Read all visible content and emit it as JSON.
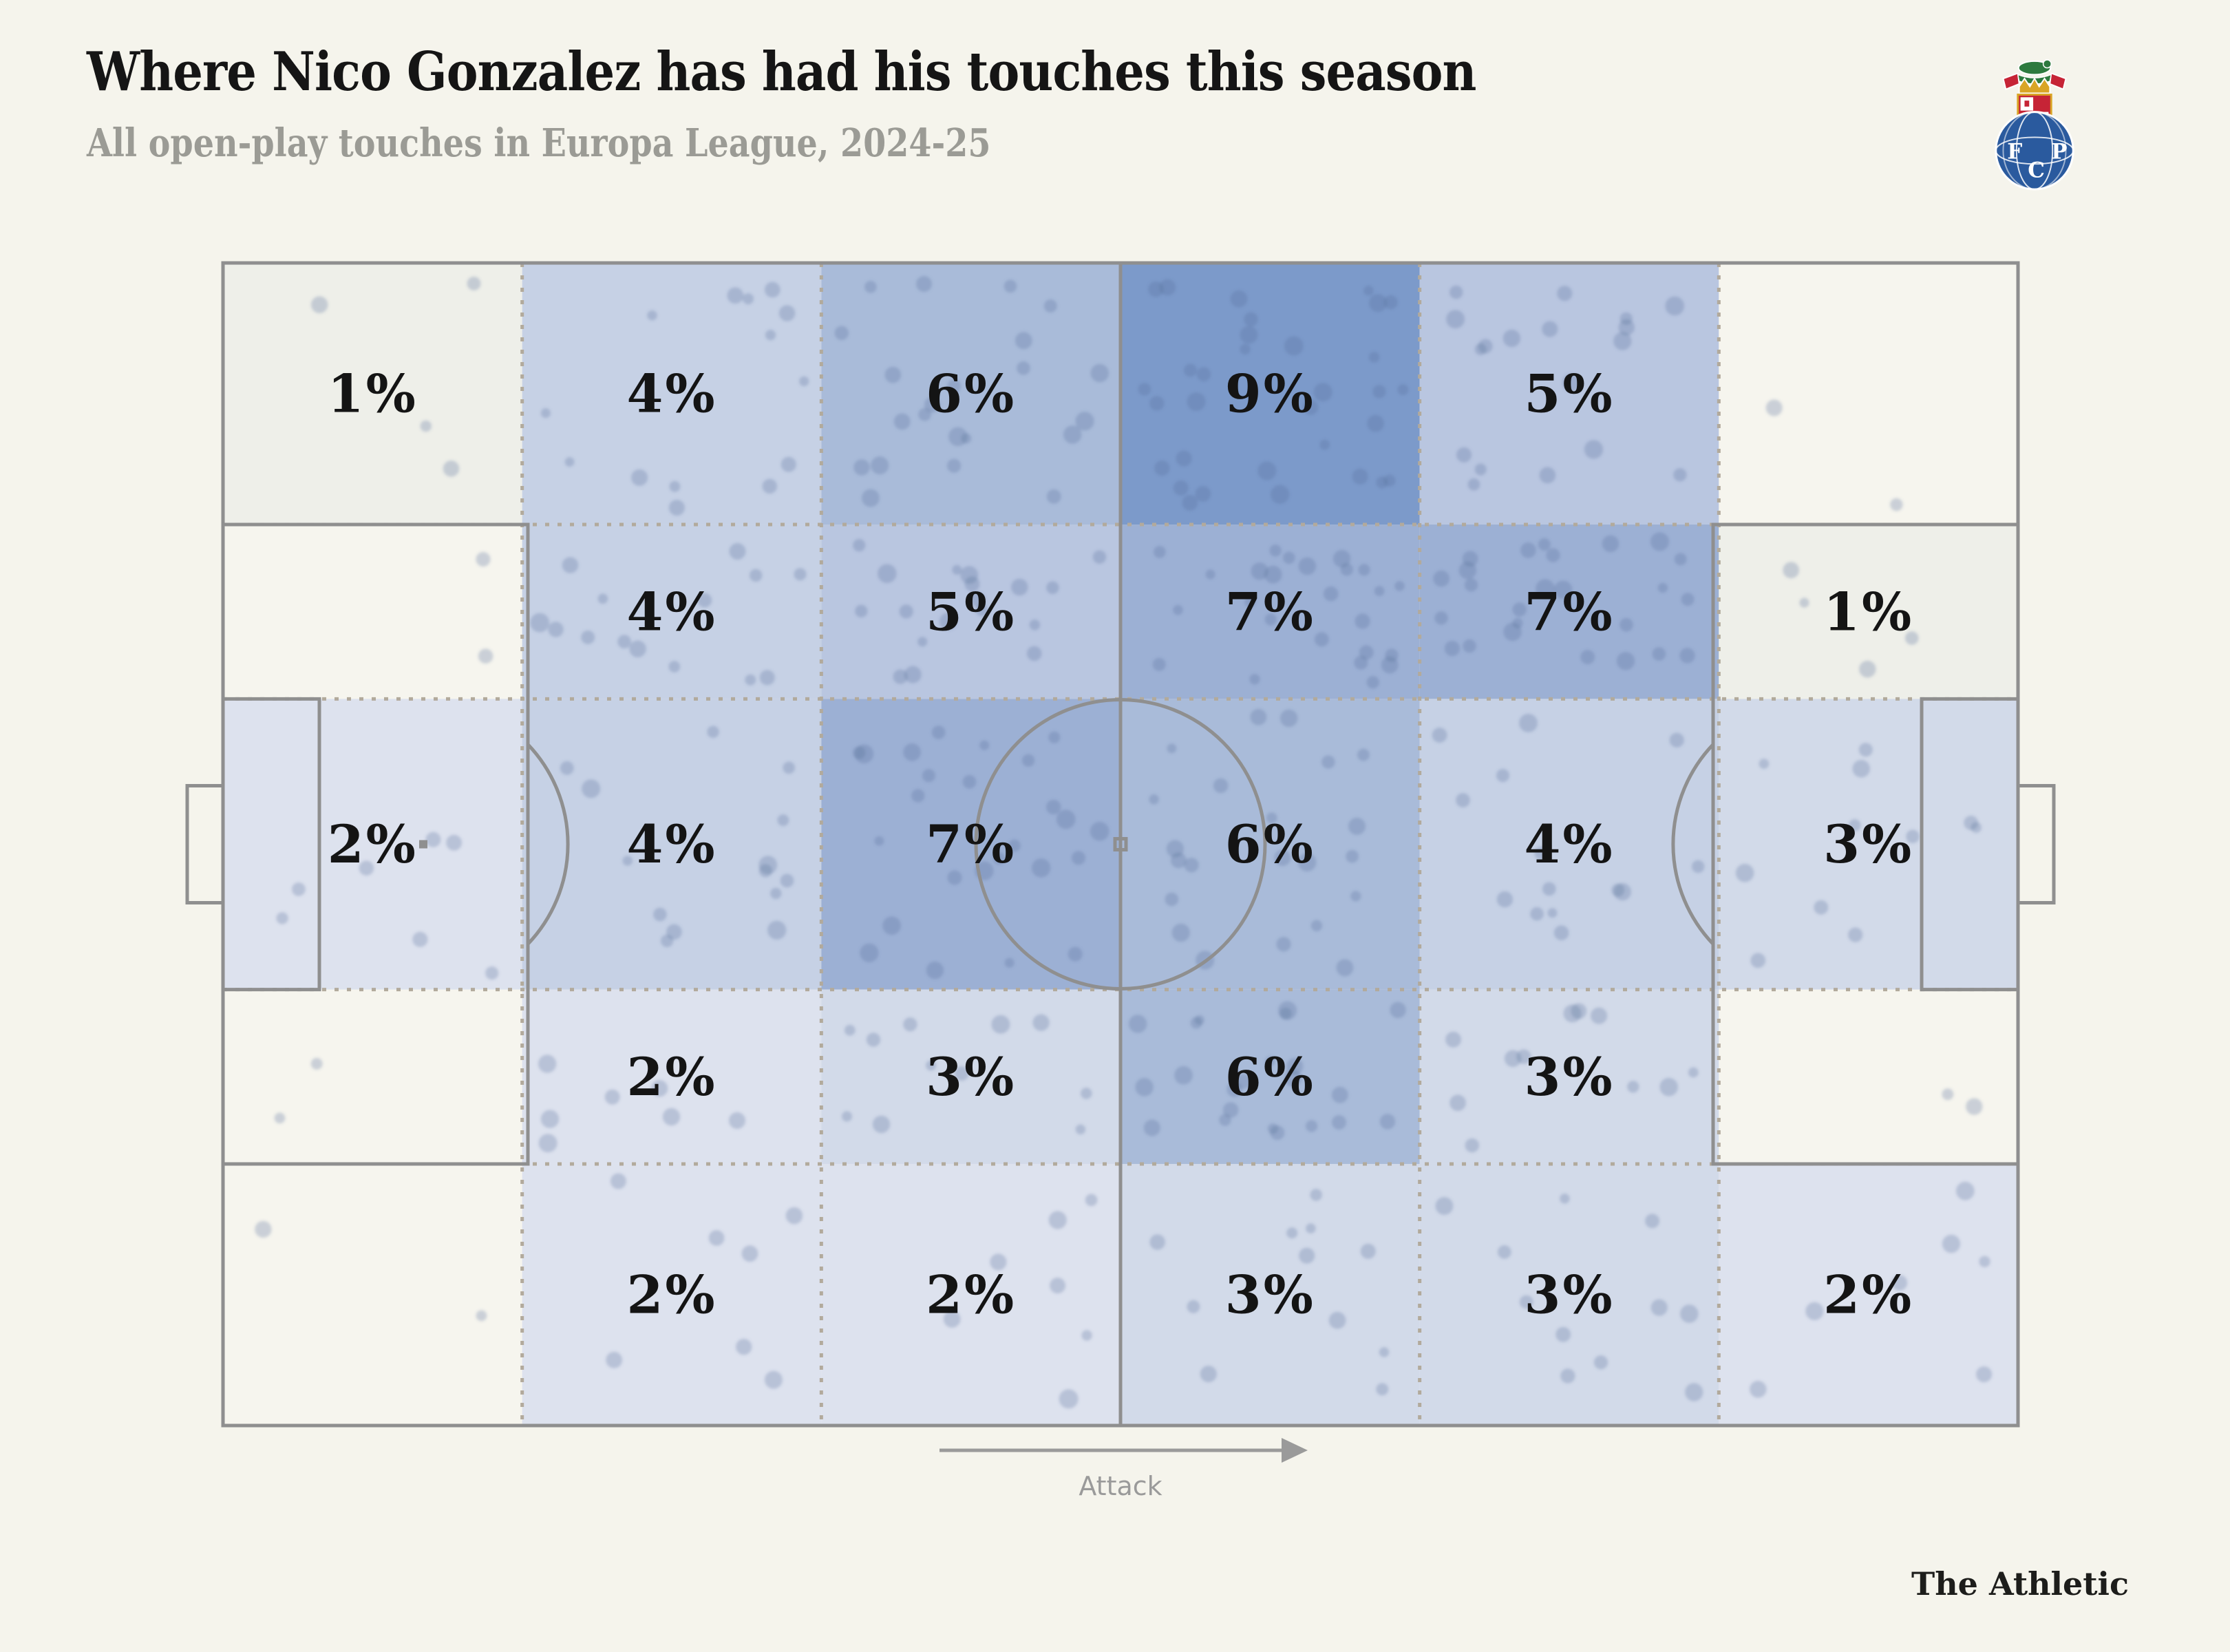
{
  "header": {
    "title": "Where Nico Gonzalez has had his touches this season",
    "subtitle": "All open-play touches in Europa League, 2024-25"
  },
  "crest": {
    "club": "FC Porto",
    "letters": [
      "F",
      "C",
      "P"
    ]
  },
  "pitch": {
    "attack_label": "Attack"
  },
  "footer": {
    "brand": "The Athletic"
  },
  "colors": {
    "background": "#f5f4ec",
    "pitch_line": "#8f8f8f",
    "zone_dash": "#b2aa9c",
    "label": "#141414",
    "subtitle": "#9b9b95",
    "attack": "#9a9a9a"
  },
  "chart_data": {
    "type": "heatmap",
    "title": "Where Nico Gonzalez has had his touches this season",
    "subtitle": "All open-play touches in Europa League, 2024-25",
    "unit": "percent of open-play touches",
    "orientation": "attack left-to-right",
    "grid": {
      "cols": 6,
      "rows": 5,
      "row_fractions": [
        0.225,
        0.15,
        0.25,
        0.15,
        0.225
      ],
      "note": "6 equal vertical bands x 5 horizontal channels; null = <1% (unlabelled)"
    },
    "zone_percentages": [
      [
        1,
        4,
        6,
        9,
        5,
        null
      ],
      [
        null,
        4,
        5,
        7,
        7,
        1
      ],
      [
        2,
        4,
        7,
        6,
        4,
        3
      ],
      [
        null,
        2,
        3,
        6,
        3,
        null
      ],
      [
        null,
        2,
        2,
        3,
        3,
        2
      ]
    ],
    "label_format": "{v}%",
    "color_scale": {
      "0": "#f6f5ee",
      "1": "#eeefe9",
      "2": "#dde2ee",
      "3": "#d2dae9",
      "4": "#c6d1e5",
      "5": "#b9c6e0",
      "6": "#a9bbd9",
      "7": "#9cb0d4",
      "9": "#7c9aca"
    },
    "dot_color": "#556c96",
    "dot_opacity": 0.27,
    "legend": "none"
  }
}
